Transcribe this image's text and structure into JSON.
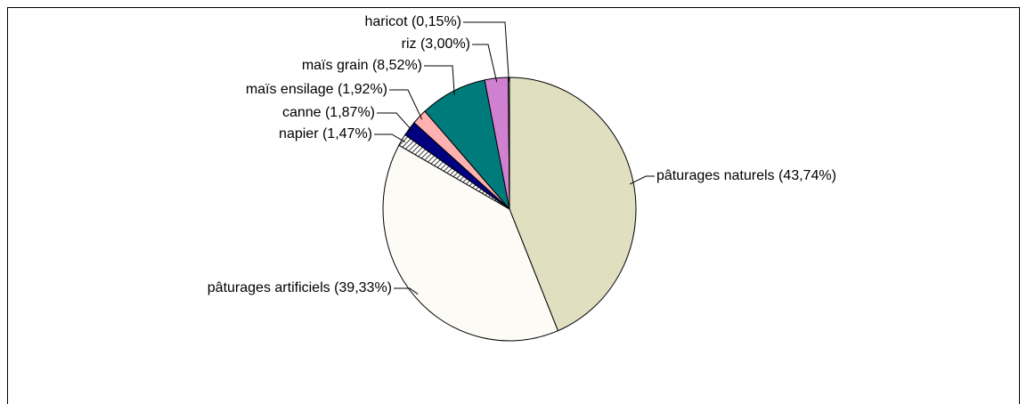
{
  "chart_data": {
    "type": "pie",
    "categories": [
      "pâturages naturels",
      "pâturages artificiels",
      "napier",
      "canne",
      "maïs ensilage",
      "maïs grain",
      "riz",
      "haricot"
    ],
    "values": [
      43.74,
      39.33,
      1.47,
      1.87,
      1.92,
      8.52,
      3.0,
      0.15
    ],
    "value_labels": [
      "pâturages naturels (43,74%)",
      "pâturages artificiels (39,33%)",
      "napier (1,47%)",
      "canne (1,87%)",
      "maïs ensilage (1,92%)",
      "maïs grain (8,52%)",
      "riz (3,00%)",
      "haricot (0,15%)"
    ],
    "colors": [
      "#e0dfc0",
      "#fcfbf6",
      "hatch",
      "#000080",
      "#ffb0b0",
      "#007b7b",
      "#d080d0",
      "#ffffff"
    ]
  }
}
